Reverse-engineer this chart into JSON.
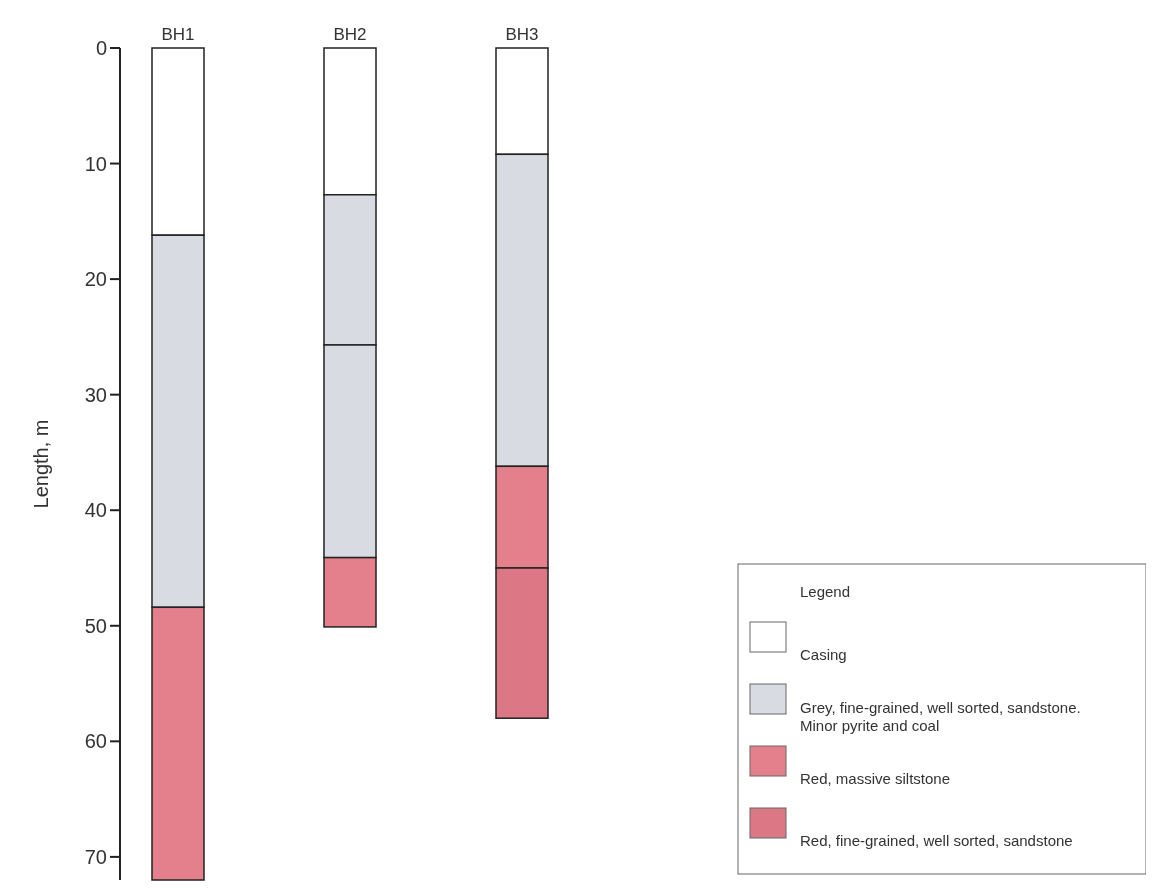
{
  "chart_data": {
    "type": "bar",
    "stacked": true,
    "ylabel": "Length, m",
    "legend_title": "Legend",
    "legend": "bottom right",
    "categories": [
      "BH1",
      "BH2",
      "BH3"
    ],
    "ylim": [
      72,
      0
    ],
    "yticks": [
      0,
      10,
      20,
      30,
      40,
      50,
      60,
      70
    ],
    "series": [
      {
        "name": "Casing",
        "color": "#ffffff",
        "values": [
          16.2,
          12.7,
          9.2
        ]
      },
      {
        "name": "Grey, fine-grained, well sorted, sandstone. Minor pyrite and coal",
        "color": "#d8dce2",
        "values": [
          32.2,
          13.0,
          27.0
        ]
      },
      {
        "color": "#d8dce2",
        "values": [
          null,
          18.4,
          null
        ]
      },
      {
        "name": "Red, massive siltstone",
        "color": "#e4808c",
        "values": [
          23.6,
          6.0,
          8.8
        ]
      },
      {
        "name": "Red, fine-grained, well sorted, sandstone",
        "color": "#dc7886",
        "values": [
          null,
          null,
          13.0
        ]
      }
    ]
  }
}
